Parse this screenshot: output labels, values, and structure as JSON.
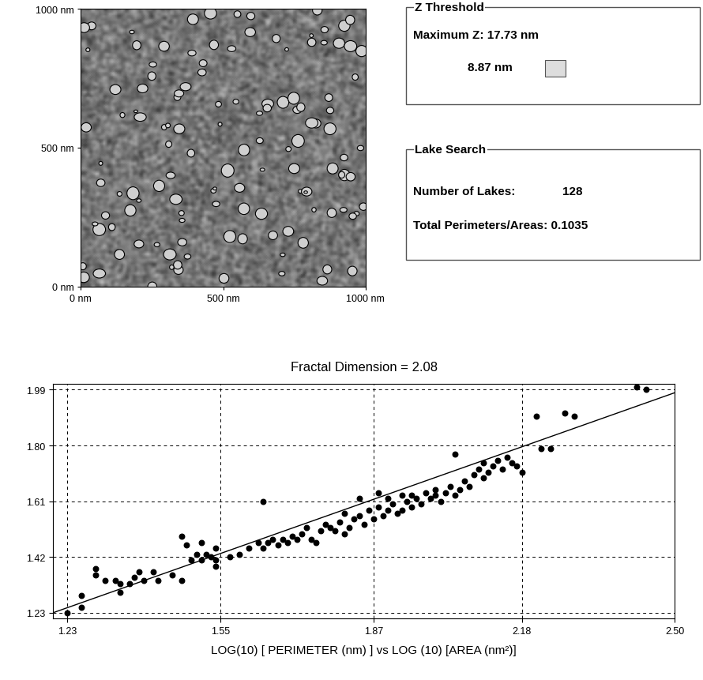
{
  "image_panel": {
    "xlim": [
      0,
      1000
    ],
    "ylim": [
      0,
      1000
    ],
    "xticks": [
      {
        "value": 0,
        "label": "0 nm"
      },
      {
        "value": 500,
        "label": "500 nm"
      },
      {
        "value": 1000,
        "label": "1000 nm"
      }
    ],
    "yticks": [
      {
        "value": 0,
        "label": "0 nm"
      },
      {
        "value": 500,
        "label": "500 nm"
      },
      {
        "value": 1000,
        "label": "1000 nm"
      }
    ]
  },
  "z_threshold": {
    "title": "Z Threshold",
    "maximum_z": "Maximum Z: 17.73 nm",
    "threshold": "8.87 nm"
  },
  "lake_search": {
    "title": "Lake Search",
    "number_of_lakes_label": "Number of Lakes:",
    "number_of_lakes": 128,
    "total_perimeters_areas": "Total Perimeters/Areas: 0.1035"
  },
  "chart_data": {
    "type": "scatter",
    "title": "Fractal Dimension = 2.08",
    "x_label": "LOG(10) [ PERIMETER (nm) ] vs LOG (10) [AREA (nm²)]",
    "xlim": [
      1.2,
      2.5
    ],
    "xticks": [
      1.23,
      1.55,
      1.87,
      2.18,
      {
        "value": 2.5,
        "label": "2.50"
      }
    ],
    "ylim": [
      1.21,
      2.01
    ],
    "yticks": [
      1.23,
      1.42,
      1.61,
      {
        "value": 1.8,
        "label": "1.80"
      },
      1.99
    ],
    "grid": true,
    "series": [
      {
        "type": "scatter",
        "color": "#000000",
        "marker": "o",
        "x": [
          1.23,
          1.26,
          1.26,
          1.29,
          1.29,
          1.31,
          1.33,
          1.34,
          1.34,
          1.36,
          1.37,
          1.38,
          1.39,
          1.41,
          1.42,
          1.45,
          1.47,
          1.47,
          1.48,
          1.49,
          1.5,
          1.51,
          1.51,
          1.52,
          1.53,
          1.54,
          1.54,
          1.54,
          1.57,
          1.59,
          1.61,
          1.63,
          1.64,
          1.64,
          1.65,
          1.66,
          1.67,
          1.68,
          1.69,
          1.7,
          1.71,
          1.72,
          1.73,
          1.74,
          1.75,
          1.76,
          1.77,
          1.78,
          1.79,
          1.8,
          1.81,
          1.81,
          1.82,
          1.83,
          1.84,
          1.84,
          1.85,
          1.86,
          1.87,
          1.88,
          1.88,
          1.89,
          1.9,
          1.9,
          1.91,
          1.92,
          1.93,
          1.93,
          1.94,
          1.95,
          1.95,
          1.96,
          1.97,
          1.98,
          1.99,
          2.0,
          2.0,
          2.01,
          2.02,
          2.03,
          2.04,
          2.04,
          2.05,
          2.06,
          2.07,
          2.08,
          2.09,
          2.1,
          2.1,
          2.11,
          2.12,
          2.13,
          2.14,
          2.15,
          2.16,
          2.17,
          2.18,
          2.21,
          2.22,
          2.24,
          2.27,
          2.29,
          2.42,
          2.44
        ],
        "values": [
          1.23,
          1.25,
          1.29,
          1.36,
          1.38,
          1.34,
          1.34,
          1.3,
          1.33,
          1.33,
          1.35,
          1.37,
          1.34,
          1.37,
          1.34,
          1.36,
          1.34,
          1.49,
          1.46,
          1.41,
          1.43,
          1.47,
          1.41,
          1.43,
          1.42,
          1.45,
          1.39,
          1.41,
          1.42,
          1.43,
          1.45,
          1.47,
          1.61,
          1.45,
          1.47,
          1.48,
          1.46,
          1.48,
          1.47,
          1.49,
          1.48,
          1.5,
          1.52,
          1.48,
          1.47,
          1.51,
          1.53,
          1.52,
          1.51,
          1.54,
          1.5,
          1.57,
          1.52,
          1.55,
          1.56,
          1.62,
          1.53,
          1.58,
          1.55,
          1.64,
          1.59,
          1.56,
          1.62,
          1.58,
          1.6,
          1.57,
          1.63,
          1.58,
          1.61,
          1.59,
          1.63,
          1.62,
          1.6,
          1.64,
          1.62,
          1.63,
          1.65,
          1.61,
          1.64,
          1.66,
          1.63,
          1.77,
          1.65,
          1.68,
          1.66,
          1.7,
          1.72,
          1.69,
          1.74,
          1.71,
          1.73,
          1.75,
          1.72,
          1.76,
          1.74,
          1.73,
          1.71,
          1.9,
          1.79,
          1.79,
          1.91,
          1.9,
          2.0,
          1.99
        ]
      },
      {
        "type": "line",
        "color": "#000000",
        "line_style": "solid",
        "x": [
          1.2,
          2.5
        ],
        "values": [
          1.23,
          1.98
        ]
      }
    ]
  }
}
